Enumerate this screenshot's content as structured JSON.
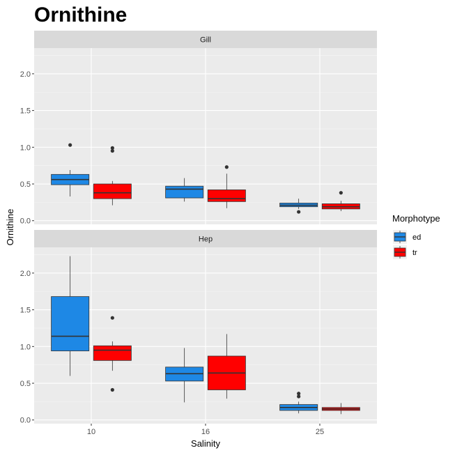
{
  "chart_data": {
    "type": "boxplot",
    "title": "Ornithine",
    "xlabel": "Salinity",
    "ylabel": "Ornithine",
    "categories": [
      "10",
      "16",
      "25"
    ],
    "ylim": [
      -0.05,
      2.35
    ],
    "yticks": [
      0.0,
      0.5,
      1.0,
      1.5,
      2.0
    ],
    "ytick_labels": [
      "0.0",
      "0.5",
      "1.0",
      "1.5",
      "2.0"
    ],
    "grid": true,
    "legend": {
      "title": "Morphotype",
      "placement": "right",
      "entries": [
        {
          "key": "ed",
          "label": "ed",
          "color": "#1E88E5"
        },
        {
          "key": "tr",
          "label": "tr",
          "color": "#FF0000"
        }
      ]
    },
    "facets": [
      {
        "label": "Gill",
        "boxes": [
          {
            "category": "10",
            "group": "ed",
            "whisker_low": 0.33,
            "q1": 0.49,
            "median": 0.56,
            "q3": 0.63,
            "whisker_high": 0.69,
            "outliers": [
              1.03
            ]
          },
          {
            "category": "10",
            "group": "tr",
            "whisker_low": 0.21,
            "q1": 0.3,
            "median": 0.38,
            "q3": 0.5,
            "whisker_high": 0.54,
            "outliers": [
              0.99,
              0.95
            ]
          },
          {
            "category": "16",
            "group": "ed",
            "whisker_low": 0.26,
            "q1": 0.31,
            "median": 0.43,
            "q3": 0.47,
            "whisker_high": 0.58,
            "outliers": []
          },
          {
            "category": "16",
            "group": "tr",
            "whisker_low": 0.17,
            "q1": 0.26,
            "median": 0.3,
            "q3": 0.42,
            "whisker_high": 0.64,
            "outliers": [
              0.73
            ]
          },
          {
            "category": "25",
            "group": "ed",
            "whisker_low": 0.16,
            "q1": 0.19,
            "median": 0.21,
            "q3": 0.24,
            "whisker_high": 0.3,
            "outliers": [
              0.12
            ]
          },
          {
            "category": "25",
            "group": "tr",
            "whisker_low": 0.13,
            "q1": 0.16,
            "median": 0.19,
            "q3": 0.23,
            "whisker_high": 0.27,
            "outliers": [
              0.38
            ]
          }
        ]
      },
      {
        "label": "Hep",
        "boxes": [
          {
            "category": "10",
            "group": "ed",
            "whisker_low": 0.6,
            "q1": 0.94,
            "median": 1.14,
            "q3": 1.68,
            "whisker_high": 2.23,
            "outliers": []
          },
          {
            "category": "10",
            "group": "tr",
            "whisker_low": 0.67,
            "q1": 0.81,
            "median": 0.95,
            "q3": 1.01,
            "whisker_high": 1.07,
            "outliers": [
              1.39,
              0.41
            ]
          },
          {
            "category": "16",
            "group": "ed",
            "whisker_low": 0.24,
            "q1": 0.53,
            "median": 0.63,
            "q3": 0.72,
            "whisker_high": 0.98,
            "outliers": []
          },
          {
            "category": "16",
            "group": "tr",
            "whisker_low": 0.29,
            "q1": 0.41,
            "median": 0.64,
            "q3": 0.87,
            "whisker_high": 1.17,
            "outliers": []
          },
          {
            "category": "25",
            "group": "ed",
            "whisker_low": 0.09,
            "q1": 0.13,
            "median": 0.17,
            "q3": 0.21,
            "whisker_high": 0.25,
            "outliers": [
              0.36,
              0.32
            ]
          },
          {
            "category": "25",
            "group": "tr",
            "whisker_low": 0.08,
            "q1": 0.13,
            "median": 0.15,
            "q3": 0.17,
            "whisker_high": 0.23,
            "outliers": []
          }
        ]
      }
    ]
  }
}
